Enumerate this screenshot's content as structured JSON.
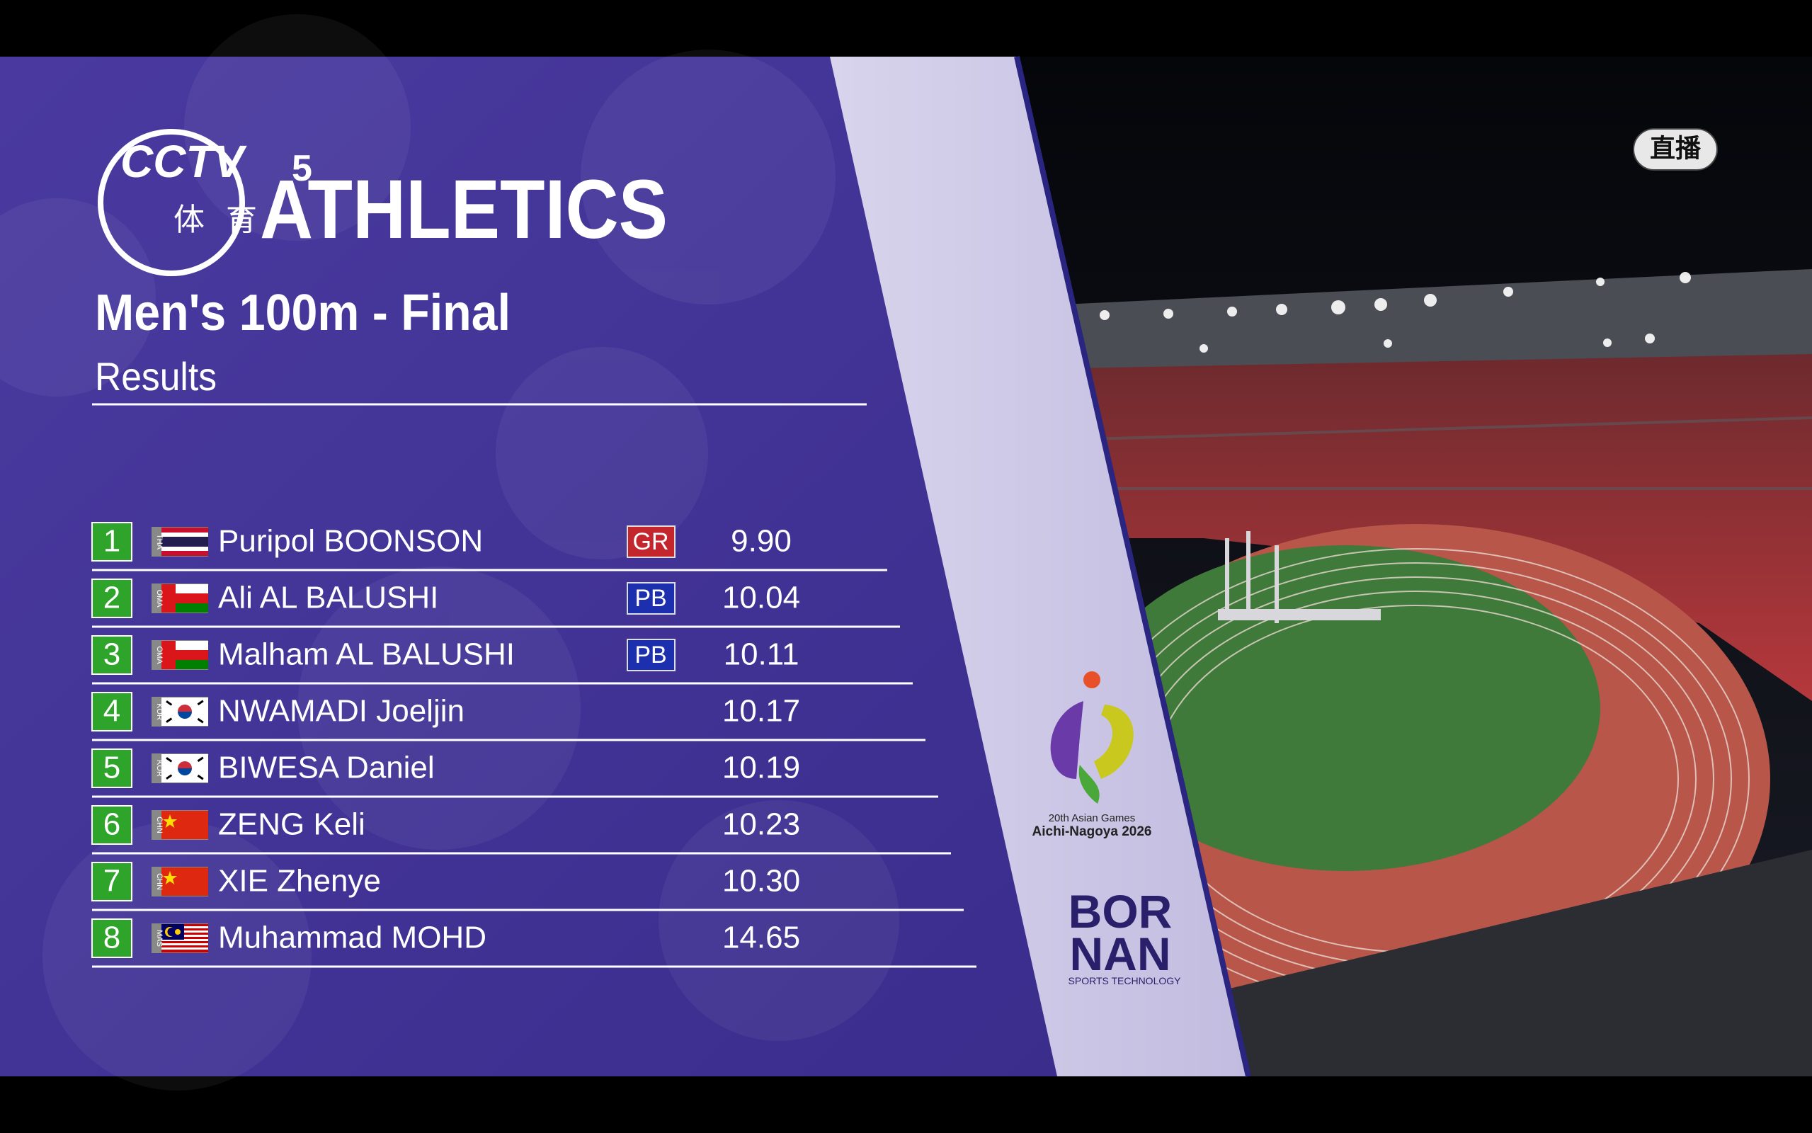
{
  "channel": {
    "name": "CCTV",
    "number": "5",
    "sub": "体育"
  },
  "header": {
    "title": "ATHLETICS",
    "event": "Men's 100m - Final",
    "subtitle": "Results"
  },
  "table": {
    "rows": [
      {
        "rank": 1,
        "country": "THA",
        "name": "Puripol BOONSON",
        "record": "GR",
        "time": "9.90"
      },
      {
        "rank": 2,
        "country": "OMA",
        "name": "Ali AL BALUSHI",
        "record": "PB",
        "time": "10.04"
      },
      {
        "rank": 3,
        "country": "OMA",
        "name": "Malham AL BALUSHI",
        "record": "PB",
        "time": "10.11"
      },
      {
        "rank": 4,
        "country": "KOR",
        "name": "NWAMADI Joeljin",
        "time": "10.17"
      },
      {
        "rank": 5,
        "country": "KOR",
        "name": "BIWESA Daniel",
        "time": "10.19"
      },
      {
        "rank": 6,
        "country": "CHN",
        "name": "ZENG Keli",
        "time": "10.23"
      },
      {
        "rank": 7,
        "country": "CHN",
        "name": "XIE Zhenye",
        "time": "10.30"
      },
      {
        "rank": 8,
        "country": "MAS",
        "name": "Muhammad MOHD",
        "time": "14.65"
      }
    ]
  },
  "live": "直播",
  "sponsors": {
    "games": "20th Asian Games",
    "host": "Aichi-Nagoya 2026",
    "brand_top": "BOR",
    "brand_bottom": "NAN",
    "brand_tagline": "SPORTS TECHNOLOGY"
  }
}
